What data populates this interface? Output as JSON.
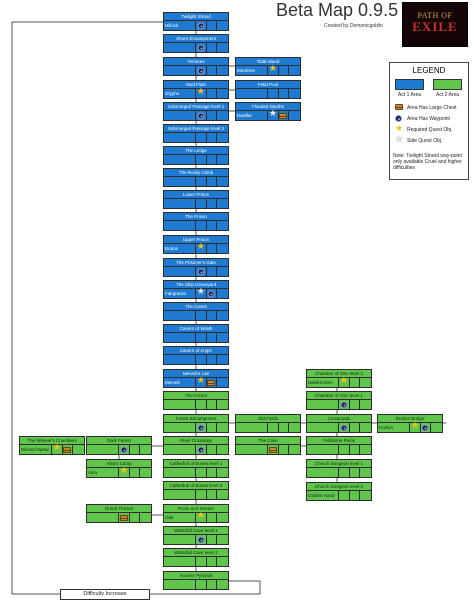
{
  "header": {
    "title": "Beta Map 0.9.5",
    "credit": "Created by Demonicgoblin",
    "logo_top": "PATH OF",
    "logo_bottom": "EXILE"
  },
  "legend": {
    "title": "LEGEND",
    "act1_label": "Act 1 Area",
    "act2_label": "Act 2 Area",
    "act1_color": "#1e7bd1",
    "act2_color": "#5fc54b",
    "items": [
      {
        "icon": "chest-icon",
        "label": "Area Has Large Chest"
      },
      {
        "icon": "waypoint-icon",
        "label": "Area Has Waypoint"
      },
      {
        "icon": "star-icon",
        "label": "Required Quest Obj."
      },
      {
        "icon": "side-star-icon",
        "label": "Side Quest Obj."
      }
    ],
    "note": "Note: Twilight Strand way-point only available Cruel and higher difficulties"
  },
  "difficulty_label": "Difficulty Increase",
  "nodes": [
    {
      "name": "Twilight Strand",
      "act": 1,
      "sub": "Hillock",
      "icons": [
        "waypoint"
      ]
    },
    {
      "name": "Shore Encampment",
      "act": 1,
      "sub": "",
      "icons": [
        "waypoint"
      ]
    },
    {
      "name": "Terraces",
      "act": 1,
      "sub": "",
      "icons": [
        "waypoint"
      ]
    },
    {
      "name": "Tidal Island",
      "act": 1,
      "sub": "Medicine",
      "icons": [
        "star"
      ]
    },
    {
      "name": "Mud Flats",
      "act": 1,
      "sub": "Glyphs",
      "icons": [
        "star"
      ]
    },
    {
      "name": "Fetid Pool",
      "act": 1,
      "sub": "",
      "icons": []
    },
    {
      "name": "Submerged Passage level 1",
      "act": 1,
      "sub": "",
      "icons": [
        "waypoint"
      ]
    },
    {
      "name": "Flooded Depths",
      "act": 1,
      "sub": "Dweller",
      "icons": [
        "sstar",
        "chest"
      ]
    },
    {
      "name": "Submerged Passage level 2",
      "act": 1,
      "sub": "",
      "icons": []
    },
    {
      "name": "The Ledge",
      "act": 1,
      "sub": "",
      "icons": []
    },
    {
      "name": "The Rocky Climb",
      "act": 1,
      "sub": "",
      "icons": []
    },
    {
      "name": "Lower Prison",
      "act": 1,
      "sub": "",
      "icons": []
    },
    {
      "name": "The Prison",
      "act": 1,
      "sub": "",
      "icons": []
    },
    {
      "name": "Upper Prison",
      "act": 1,
      "sub": "Brutus",
      "icons": [
        "star"
      ]
    },
    {
      "name": "The Prisoner's Gate",
      "act": 1,
      "sub": "",
      "icons": [
        "waypoint"
      ]
    },
    {
      "name": "The Ship Graveyard",
      "act": 1,
      "sub": "Fairgraves",
      "icons": [
        "sstar",
        "waypoint"
      ]
    },
    {
      "name": "The Caves",
      "act": 1,
      "sub": "",
      "icons": []
    },
    {
      "name": "Cavern of Wrath",
      "act": 1,
      "sub": "",
      "icons": []
    },
    {
      "name": "Cavern of Anger",
      "act": 1,
      "sub": "",
      "icons": []
    },
    {
      "name": "Merveil's Lair",
      "act": 1,
      "sub": "Merveil",
      "icons": [
        "star",
        "chest"
      ]
    },
    {
      "name": "The Forest",
      "act": 2,
      "sub": "",
      "icons": []
    },
    {
      "name": "Forest Encampment",
      "act": 2,
      "sub": "",
      "icons": [
        "waypoint"
      ]
    },
    {
      "name": "Old Fields",
      "act": 2,
      "sub": "",
      "icons": []
    },
    {
      "name": "Crossroads",
      "act": 2,
      "sub": "",
      "icons": [
        "waypoint"
      ]
    },
    {
      "name": "Broken Bridge",
      "act": 2,
      "sub": "Kraityn",
      "icons": [
        "star",
        "waypoint"
      ]
    },
    {
      "name": "Chamber of Sins level 1",
      "act": 2,
      "sub": "",
      "icons": [
        "waypoint"
      ]
    },
    {
      "name": "Chamber of Sins level 2",
      "act": 2,
      "sub": "Baleful Gem",
      "icons": [
        "star"
      ]
    },
    {
      "name": "The Cave",
      "act": 2,
      "sub": "",
      "icons": [
        "chest"
      ]
    },
    {
      "name": "Fellshrine Ruins",
      "act": 2,
      "sub": "",
      "icons": []
    },
    {
      "name": "Church Dungeon level 1",
      "act": 2,
      "sub": "",
      "icons": []
    },
    {
      "name": "Church Dungeon level 2",
      "act": 2,
      "sub": "Golden Hand",
      "icons": []
    },
    {
      "name": "River Crossings",
      "act": 2,
      "sub": "",
      "icons": [
        "waypoint"
      ]
    },
    {
      "name": "Dark Forest",
      "act": 2,
      "sub": "",
      "icons": [
        "waypoint"
      ]
    },
    {
      "name": "The Weaver's Chambers",
      "act": 2,
      "sub": "Wicked Spear",
      "icons": [
        "star",
        "chest"
      ]
    },
    {
      "name": "Alira's Camp",
      "act": 2,
      "sub": "Alira",
      "icons": [
        "star"
      ]
    },
    {
      "name": "Cathedral of Bones level 1",
      "act": 2,
      "sub": "",
      "icons": []
    },
    {
      "name": "Cathedral of Bones level 2",
      "act": 2,
      "sub": "",
      "icons": []
    },
    {
      "name": "Dread Thicket",
      "act": 2,
      "sub": "",
      "icons": [
        "chest"
      ]
    },
    {
      "name": "Pools and Stream",
      "act": 2,
      "sub": "Oak",
      "icons": [
        "star"
      ]
    },
    {
      "name": "Waterfall Cave level 1",
      "act": 2,
      "sub": "",
      "icons": [
        "waypoint"
      ]
    },
    {
      "name": "Waterfall Cave level 2",
      "act": 2,
      "sub": "",
      "icons": []
    },
    {
      "name": "Ancient Pyramid",
      "act": 2,
      "sub": "",
      "icons": []
    }
  ]
}
